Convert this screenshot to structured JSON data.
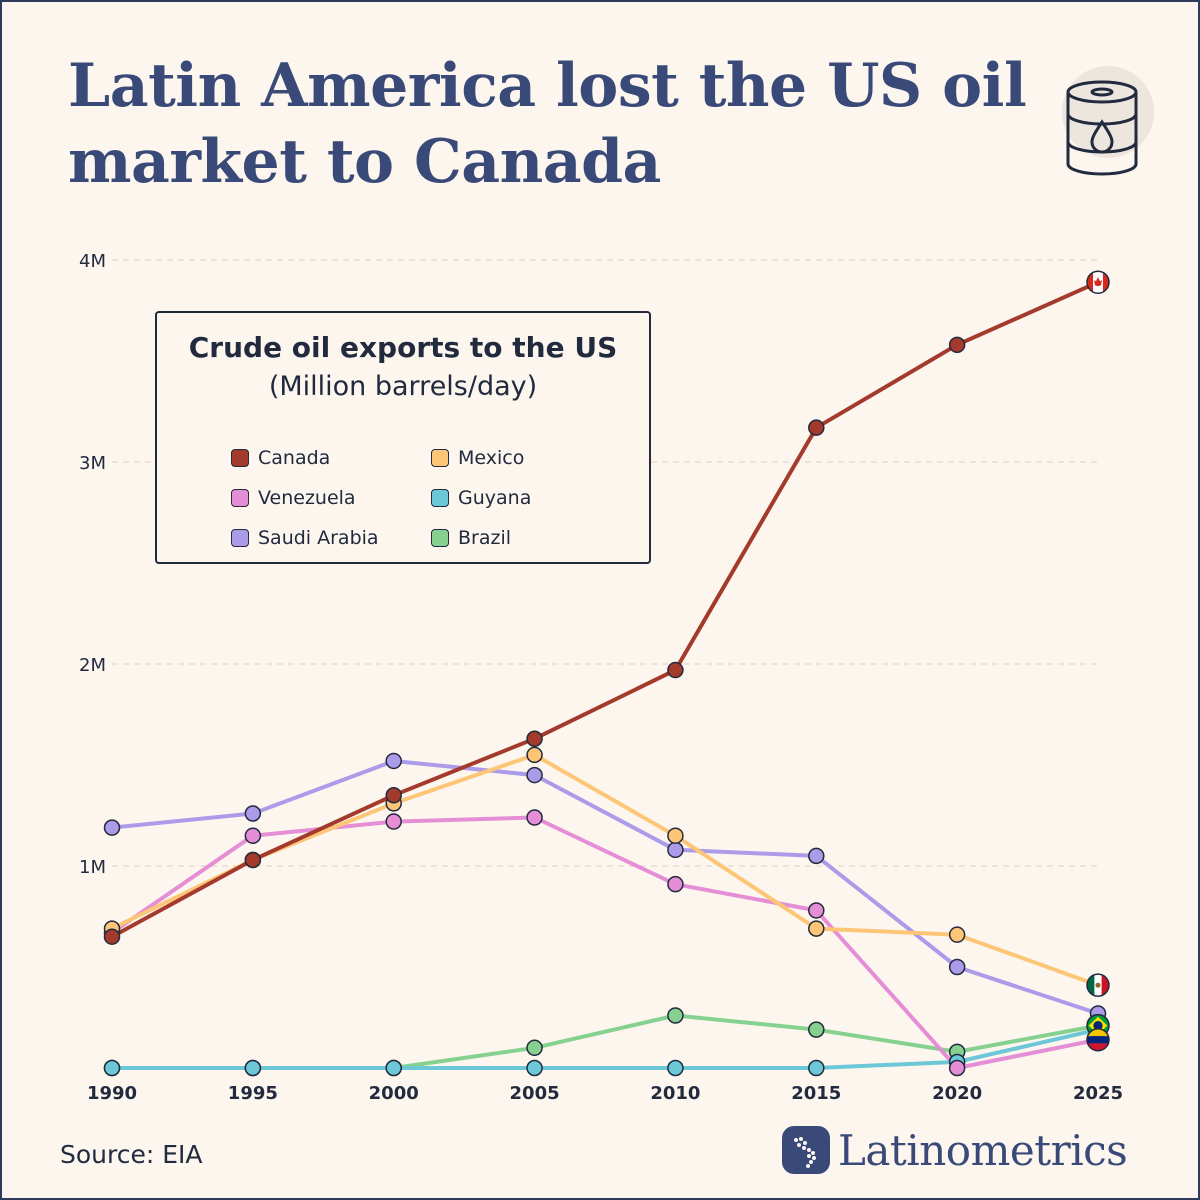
{
  "title": "Latin America lost the US oil market to Canada",
  "source": "Source: EIA",
  "brand": "Latinometrics",
  "chart_data": {
    "type": "line",
    "title": "Crude oil exports to the US",
    "subtitle": "(Million barrels/day)",
    "x": [
      1990,
      1995,
      2000,
      2005,
      2010,
      2015,
      2020,
      2025
    ],
    "ylim": [
      0,
      4000000
    ],
    "yticks": [
      {
        "value": 1000000,
        "label": "1M"
      },
      {
        "value": 2000000,
        "label": "2M"
      },
      {
        "value": 3000000,
        "label": "3M"
      },
      {
        "value": 4000000,
        "label": "4M"
      }
    ],
    "grid": true,
    "legend_placement": "top-left",
    "series": [
      {
        "name": "Canada",
        "color": "#a33a2c",
        "flag": "canada-flag-icon",
        "values": [
          650000,
          1030000,
          1350000,
          1630000,
          1970000,
          3170000,
          3580000,
          3890000
        ]
      },
      {
        "name": "Mexico",
        "color": "#fdc677",
        "flag": "mexico-flag-icon",
        "values": [
          690000,
          1030000,
          1310000,
          1550000,
          1150000,
          690000,
          660000,
          410000
        ]
      },
      {
        "name": "Venezuela",
        "color": "#e58ed6",
        "flag": "venezuela-flag-icon",
        "values": [
          670000,
          1150000,
          1220000,
          1240000,
          910000,
          780000,
          0,
          140000
        ]
      },
      {
        "name": "Guyana",
        "color": "#6cc8d6",
        "flag": null,
        "values": [
          0,
          0,
          0,
          0,
          0,
          0,
          30000,
          190000
        ]
      },
      {
        "name": "Saudi Arabia",
        "color": "#ab9be8",
        "flag": null,
        "values": [
          1190000,
          1260000,
          1520000,
          1450000,
          1080000,
          1050000,
          500000,
          270000
        ]
      },
      {
        "name": "Brazil",
        "color": "#86d190",
        "flag": "brazil-flag-icon",
        "values": [
          0,
          0,
          0,
          100000,
          260000,
          190000,
          80000,
          210000
        ]
      }
    ]
  }
}
